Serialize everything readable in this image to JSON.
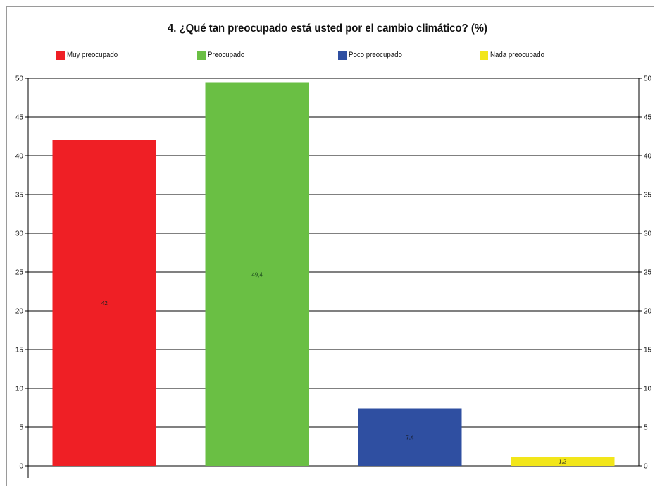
{
  "chart_data": {
    "type": "bar",
    "title": "4. ¿Qué tan preocupado está usted por el cambio climático? (%)",
    "categories": [
      "Muy preocupado",
      "Preocupado",
      "Poco preocupado",
      "Nada preocupado"
    ],
    "values": [
      42,
      49.4,
      7.4,
      1.2
    ],
    "data_labels": [
      "42",
      "49,4",
      "7,4",
      "1,2"
    ],
    "colors": [
      "#ef1f25",
      "#6abf44",
      "#2f4fa1",
      "#f2e61a"
    ],
    "label_colors": [
      "#222222",
      "#1f4f1f",
      "#111111",
      "#222222"
    ],
    "ylim": [
      0,
      50
    ],
    "y_ticks": [
      0,
      5,
      10,
      15,
      20,
      25,
      30,
      35,
      40,
      45,
      50
    ],
    "grid": true,
    "legend_position": "top",
    "secondary_axis": "right, mirrored"
  }
}
